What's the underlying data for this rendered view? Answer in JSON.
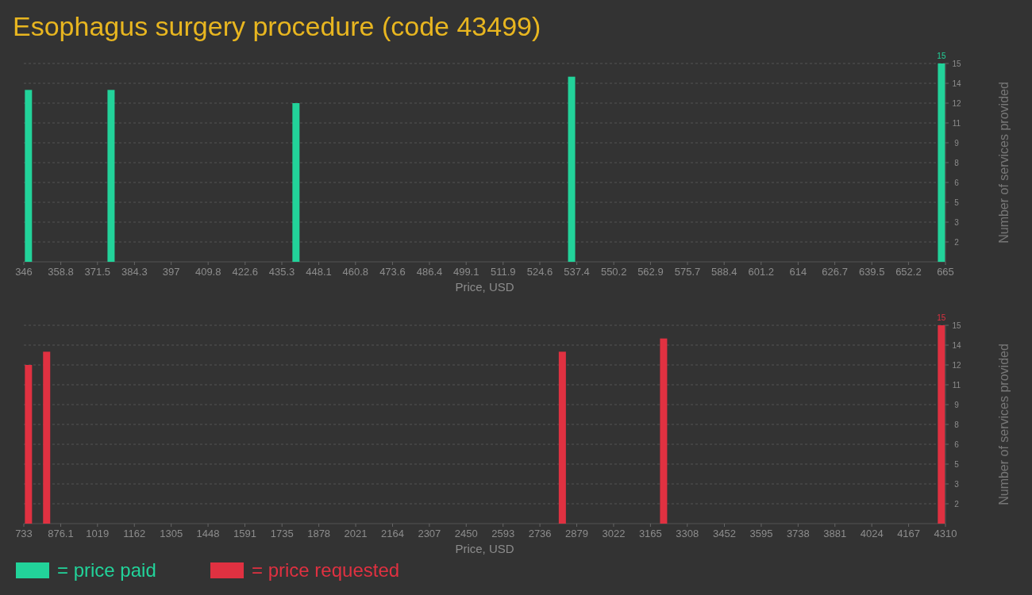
{
  "chart_data": [
    {
      "type": "bar",
      "title": "Esophagus surgery procedure (code 43499)",
      "xlabel": "Price, USD",
      "ylabel": "Number of services provided",
      "xlim": [
        346,
        665
      ],
      "xticks": [
        346,
        358.8,
        371.5,
        384.3,
        397,
        409.8,
        422.6,
        435.3,
        448.1,
        460.8,
        473.6,
        486.4,
        499.1,
        511.9,
        524.6,
        537.4,
        550.2,
        562.9,
        575.7,
        588.4,
        601.2,
        614,
        626.7,
        639.5,
        652.2,
        665
      ],
      "ylim": [
        0,
        15
      ],
      "yticks": [
        {
          "value": 1.5,
          "label": "2"
        },
        3,
        {
          "value": 4.5,
          "label": "5"
        },
        6,
        {
          "value": 7.5,
          "label": "8"
        },
        9,
        {
          "value": 10.5,
          "label": "11"
        },
        12,
        {
          "value": 13.5,
          "label": "14"
        },
        15
      ],
      "grid": "y",
      "legend": "bottom",
      "series": [
        {
          "name": "= price paid",
          "color": "#22d39a",
          "x": [
            347.6,
            376.2,
            440.2,
            535.6,
            663.6
          ],
          "values": [
            13,
            13,
            12,
            14,
            15
          ],
          "value_labels": [
            null,
            null,
            null,
            null,
            "15"
          ]
        }
      ]
    },
    {
      "type": "bar",
      "xlabel": "Price, USD",
      "ylabel": "Number of services provided",
      "xlim": [
        733,
        4310
      ],
      "xticks": [
        733,
        876.1,
        1019,
        1162,
        1305,
        1448,
        1591,
        1735,
        1878,
        2021,
        2164,
        2307,
        2450,
        2593,
        2736,
        2879,
        3022,
        3165,
        3308,
        3452,
        3595,
        3738,
        3881,
        4024,
        4167,
        4310
      ],
      "ylim": [
        0,
        15
      ],
      "yticks": [
        {
          "value": 1.5,
          "label": "2"
        },
        3,
        {
          "value": 4.5,
          "label": "5"
        },
        6,
        {
          "value": 7.5,
          "label": "8"
        },
        9,
        {
          "value": 10.5,
          "label": "11"
        },
        12,
        {
          "value": 13.5,
          "label": "14"
        },
        15
      ],
      "grid": "y",
      "legend": "bottom",
      "series": [
        {
          "name": "= price requested",
          "color": "#e03141",
          "x": [
            751,
            821.6,
            2823,
            3216,
            4294
          ],
          "values": [
            12,
            13,
            13,
            14,
            15
          ],
          "value_labels": [
            null,
            null,
            null,
            null,
            "15"
          ]
        }
      ]
    }
  ]
}
